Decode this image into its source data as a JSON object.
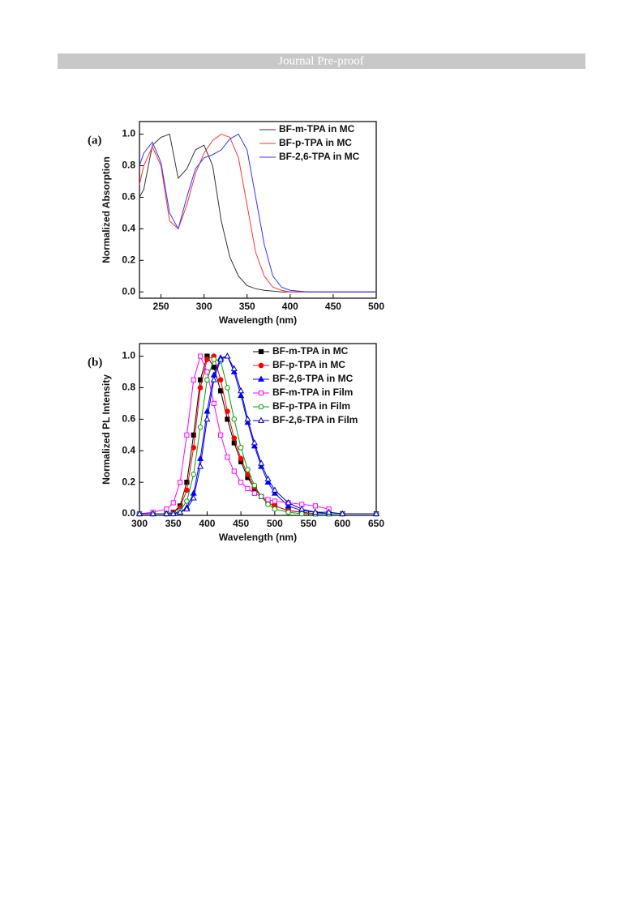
{
  "header": {
    "title": "Journal Pre-proof"
  },
  "chart_data": [
    {
      "type": "line",
      "panel_label": "(a)",
      "x_label": "Wavelength (nm)",
      "y_label": "Normalized Absorption",
      "xlim": [
        225,
        500
      ],
      "xticks": [
        250,
        300,
        350,
        400,
        450,
        500
      ],
      "ylim": [
        -0.04,
        1.08
      ],
      "yticks": [
        {
          "value": 0,
          "label": "0.0"
        },
        0.2,
        0.4,
        0.6,
        0.8,
        {
          "value": 1,
          "label": "1.0"
        }
      ],
      "x": [
        225,
        230,
        240,
        250,
        260,
        270,
        280,
        290,
        300,
        310,
        320,
        330,
        340,
        350,
        360,
        370,
        380,
        390,
        400,
        420,
        450,
        500
      ],
      "series": [
        {
          "name": "BF-m-TPA in MC",
          "color": "#333333",
          "values": [
            0.6,
            0.65,
            0.93,
            0.98,
            1.0,
            0.72,
            0.78,
            0.9,
            0.93,
            0.8,
            0.45,
            0.22,
            0.1,
            0.04,
            0.02,
            0.01,
            0.005,
            0,
            0,
            0,
            0,
            0
          ]
        },
        {
          "name": "BF-p-TPA in MC",
          "color": "#ff3333",
          "values": [
            0.68,
            0.8,
            0.92,
            0.8,
            0.45,
            0.4,
            0.55,
            0.75,
            0.88,
            0.96,
            1.0,
            0.98,
            0.85,
            0.55,
            0.25,
            0.1,
            0.03,
            0.01,
            0,
            0,
            0,
            0
          ]
        },
        {
          "name": "BF-2,6-TPA in MC",
          "color": "#3333ff",
          "values": [
            0.8,
            0.88,
            0.95,
            0.82,
            0.5,
            0.4,
            0.6,
            0.78,
            0.85,
            0.87,
            0.9,
            0.97,
            1.0,
            0.9,
            0.6,
            0.3,
            0.1,
            0.03,
            0.01,
            0,
            0,
            0
          ]
        }
      ]
    },
    {
      "type": "line",
      "panel_label": "(b)",
      "x_label": "Wavelength (nm)",
      "y_label": "Normalized PL Intensity",
      "xlim": [
        300,
        650
      ],
      "xticks": [
        300,
        350,
        400,
        450,
        500,
        550,
        600,
        650
      ],
      "ylim": [
        -0.01,
        1.08
      ],
      "yticks": [
        {
          "value": 0,
          "label": "0.0"
        },
        0.2,
        0.4,
        0.6,
        0.8,
        {
          "value": 1,
          "label": "1.0"
        }
      ],
      "x": [
        300,
        320,
        340,
        350,
        360,
        370,
        380,
        390,
        400,
        410,
        420,
        430,
        440,
        450,
        460,
        470,
        480,
        490,
        500,
        520,
        540,
        560,
        580,
        600,
        650
      ],
      "series": [
        {
          "name": "BF-m-TPA in MC",
          "color": "#000000",
          "marker": "square",
          "filled": true,
          "values": [
            0,
            0,
            0,
            0.01,
            0.05,
            0.2,
            0.5,
            0.85,
            1.0,
            0.93,
            0.78,
            0.6,
            0.45,
            0.33,
            0.23,
            0.16,
            0.11,
            0.07,
            0.05,
            0.02,
            0.01,
            0,
            0,
            0,
            0
          ]
        },
        {
          "name": "BF-p-TPA in MC",
          "color": "#ff0000",
          "marker": "circle",
          "filled": true,
          "values": [
            0,
            0,
            0,
            0.01,
            0.04,
            0.15,
            0.42,
            0.8,
            0.98,
            1.0,
            0.85,
            0.65,
            0.48,
            0.35,
            0.25,
            0.17,
            0.11,
            0.07,
            0.05,
            0.02,
            0.01,
            0,
            0,
            0,
            0
          ]
        },
        {
          "name": "BF-2,6-TPA in MC",
          "color": "#0000ff",
          "marker": "triangle",
          "filled": true,
          "values": [
            0,
            0,
            0,
            0,
            0.01,
            0.04,
            0.13,
            0.35,
            0.65,
            0.88,
            0.99,
            1.0,
            0.9,
            0.75,
            0.58,
            0.43,
            0.3,
            0.2,
            0.13,
            0.05,
            0.02,
            0.01,
            0,
            0,
            0
          ]
        },
        {
          "name": "BF-m-TPA in Film",
          "color": "#ff00ff",
          "marker": "square",
          "filled": false,
          "values": [
            0,
            0.01,
            0.03,
            0.07,
            0.2,
            0.5,
            0.85,
            1.0,
            0.9,
            0.7,
            0.5,
            0.36,
            0.27,
            0.2,
            0.16,
            0.13,
            0.11,
            0.09,
            0.08,
            0.07,
            0.06,
            0.05,
            0.03,
            null,
            null
          ]
        },
        {
          "name": "BF-p-TPA in Film",
          "color": "#00a000",
          "marker": "circle",
          "filled": false,
          "values": [
            0,
            0,
            0,
            0,
            0.02,
            0.08,
            0.25,
            0.55,
            0.85,
            0.98,
            0.97,
            0.8,
            0.6,
            0.42,
            0.28,
            0.18,
            0.11,
            0.06,
            0.03,
            0.01,
            0,
            0,
            0,
            0,
            0
          ]
        },
        {
          "name": "BF-2,6-TPA in Film",
          "color": "#0000cc",
          "marker": "triangle",
          "filled": false,
          "values": [
            0,
            0,
            0,
            0,
            0.01,
            0.03,
            0.1,
            0.3,
            0.6,
            0.85,
            0.98,
            1.0,
            0.92,
            0.78,
            0.6,
            0.45,
            0.32,
            0.22,
            0.15,
            0.07,
            0.03,
            0.01,
            0.01,
            0,
            0
          ]
        }
      ]
    }
  ]
}
